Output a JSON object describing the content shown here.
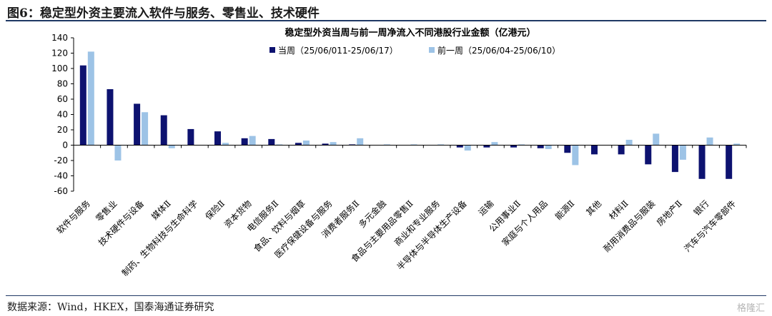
{
  "figure": {
    "title": "图6：稳定型外资主要流入软件与服务、零售业、技术硬件",
    "source": "数据来源：Wind，HKEX，国泰海通证券研究",
    "watermark": "格隆汇"
  },
  "colors": {
    "current": "#0d1270",
    "previous": "#9dc3e6",
    "axis": "#000000"
  },
  "chart_data": {
    "type": "bar",
    "title": "稳定型外资当周与前一周净流入不同港股行业金额（亿港元）",
    "xlabel": "",
    "ylabel": "",
    "ylim": [
      -60,
      140
    ],
    "yticks": [
      140,
      120,
      100,
      80,
      60,
      40,
      20,
      0,
      -20,
      -40,
      -60
    ],
    "legend_position": "top-center",
    "categories": [
      "软件与服务",
      "零售业",
      "技术硬件与设备",
      "媒体Ⅱ",
      "制药、生物科技与生命科学",
      "保险Ⅱ",
      "资本货物",
      "电信服务Ⅱ",
      "食品、饮料与烟草",
      "医疗保健设备与服务",
      "消费者服务Ⅱ",
      "多元金融",
      "食品与主要用品零售Ⅱ",
      "商业和专业服务",
      "半导体与半导体生产设备",
      "运输",
      "公用事业Ⅱ",
      "家庭与个人用品",
      "能源Ⅱ",
      "其他",
      "材料Ⅱ",
      "耐用消费品与服装",
      "房地产Ⅱ",
      "银行",
      "汽车与汽车零部件"
    ],
    "series": [
      {
        "name": "当周（25/06/011-25/06/17）",
        "values": [
          104,
          73,
          54,
          39,
          21,
          18,
          9,
          8,
          3,
          2,
          1,
          0,
          0,
          0,
          -3,
          -3,
          -3,
          -4,
          -10,
          -12,
          -12,
          -25,
          -35,
          -44,
          -44
        ]
      },
      {
        "name": "前一周（25/06/04-25/06/10）",
        "values": [
          122,
          -20,
          43,
          -4,
          0,
          3,
          12,
          1,
          6,
          4,
          9,
          1,
          1,
          1,
          -7,
          4,
          1,
          -5,
          -26,
          0,
          7,
          15,
          -19,
          10,
          2
        ]
      }
    ]
  }
}
